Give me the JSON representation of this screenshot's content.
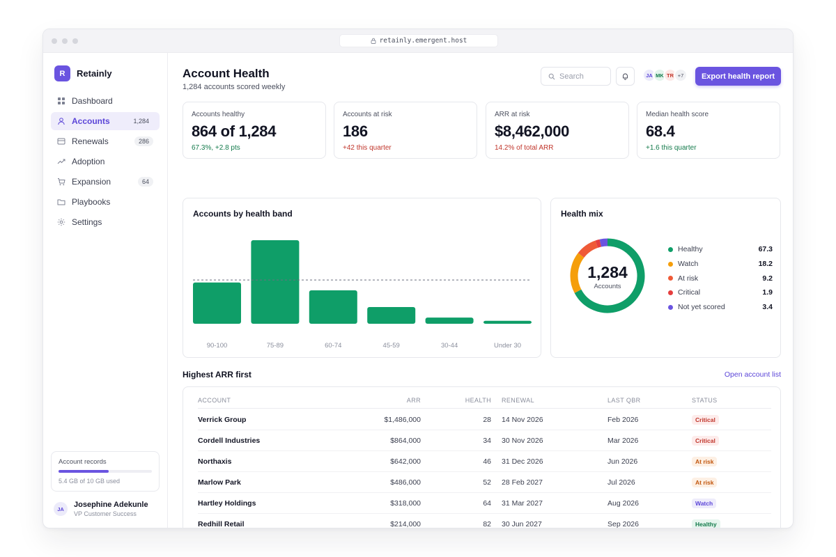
{
  "browser": {
    "url": "retainly.emergent.host"
  },
  "brand": {
    "mark": "R",
    "name": "Retainly"
  },
  "nav": [
    {
      "label": "Dashboard",
      "icon": "grid-icon",
      "count": ""
    },
    {
      "label": "Accounts",
      "icon": "user-icon",
      "count": "1,284",
      "active": true
    },
    {
      "label": "Renewals",
      "icon": "card-icon",
      "count": "286"
    },
    {
      "label": "Adoption",
      "icon": "trend-icon",
      "count": ""
    },
    {
      "label": "Expansion",
      "icon": "cart-icon",
      "count": "64"
    },
    {
      "label": "Playbooks",
      "icon": "folder-icon",
      "count": ""
    },
    {
      "label": "Settings",
      "icon": "gear-icon",
      "count": ""
    }
  ],
  "storage": {
    "title": "Account records",
    "text": "5.4 GB of 10 GB used",
    "used_fraction": 0.54
  },
  "user": {
    "initials": "JA",
    "name": "Josephine Adekunle",
    "role": "VP Customer Success"
  },
  "header": {
    "title": "Account Health",
    "subtitle": "1,284 accounts scored weekly",
    "search_placeholder": "Search",
    "avatars": [
      "JA",
      "MK",
      "TR",
      "+7"
    ],
    "export_label": "Export health report"
  },
  "kpis": [
    {
      "label": "Accounts healthy",
      "value": "864 of 1,284",
      "delta": "67.3%, +2.8 pts",
      "tone": "pos"
    },
    {
      "label": "Accounts at risk",
      "value": "186",
      "delta": "+42 this quarter",
      "tone": "neg"
    },
    {
      "label": "ARR at risk",
      "value": "$8,462,000",
      "delta": "14.2% of total ARR",
      "tone": "neg"
    },
    {
      "label": "Median health score",
      "value": "68.4",
      "delta": "+1.6 this quarter",
      "tone": "pos"
    }
  ],
  "chart_data": [
    {
      "type": "bar",
      "title": "Accounts by health band",
      "categories": [
        "90-100",
        "75-89",
        "60-74",
        "45-59",
        "30-44",
        "Under 30"
      ],
      "values": [
        168,
        340,
        136,
        68,
        25,
        12
      ],
      "reference_line": 178,
      "ylim": [
        0,
        340
      ],
      "color": "#0f9e68"
    },
    {
      "type": "pie",
      "title": "Health mix",
      "center_value": "1,284",
      "center_label": "Accounts",
      "labels": [
        "Healthy",
        "Watch",
        "At risk",
        "Critical",
        "Not yet scored"
      ],
      "values": [
        67.3,
        18.2,
        9.2,
        1.9,
        3.4
      ],
      "display_values": [
        "67.3",
        "18.2",
        "9.2",
        "1.9",
        "3.4"
      ],
      "colors": [
        "#0f9e68",
        "#f59e0b",
        "#ef5a37",
        "#e53e3e",
        "#6a54e0"
      ]
    }
  ],
  "table": {
    "title": "Highest ARR first",
    "link": "Open account list",
    "columns": [
      "ACCOUNT",
      "ARR",
      "HEALTH",
      "RENEWAL",
      "LAST QBR",
      "STATUS"
    ],
    "rows": [
      {
        "account": "Verrick Group",
        "arr": "$1,486,000",
        "health": "28",
        "renewal": "14 Nov 2026",
        "qbr": "Feb 2026",
        "status": "Critical",
        "badge": "b-critical"
      },
      {
        "account": "Cordell Industries",
        "arr": "$864,000",
        "health": "34",
        "renewal": "30 Nov 2026",
        "qbr": "Mar 2026",
        "status": "Critical",
        "badge": "b-critical"
      },
      {
        "account": "Northaxis",
        "arr": "$642,000",
        "health": "46",
        "renewal": "31 Dec 2026",
        "qbr": "Jun 2026",
        "status": "At risk",
        "badge": "b-atrisk"
      },
      {
        "account": "Marlow Park",
        "arr": "$486,000",
        "health": "52",
        "renewal": "28 Feb 2027",
        "qbr": "Jul 2026",
        "status": "At risk",
        "badge": "b-atrisk"
      },
      {
        "account": "Hartley Holdings",
        "arr": "$318,000",
        "health": "64",
        "renewal": "31 Mar 2027",
        "qbr": "Aug 2026",
        "status": "Watch",
        "badge": "b-watch"
      },
      {
        "account": "Redhill Retail",
        "arr": "$214,000",
        "health": "82",
        "renewal": "30 Jun 2027",
        "qbr": "Sep 2026",
        "status": "Healthy",
        "badge": "b-healthy"
      }
    ]
  }
}
